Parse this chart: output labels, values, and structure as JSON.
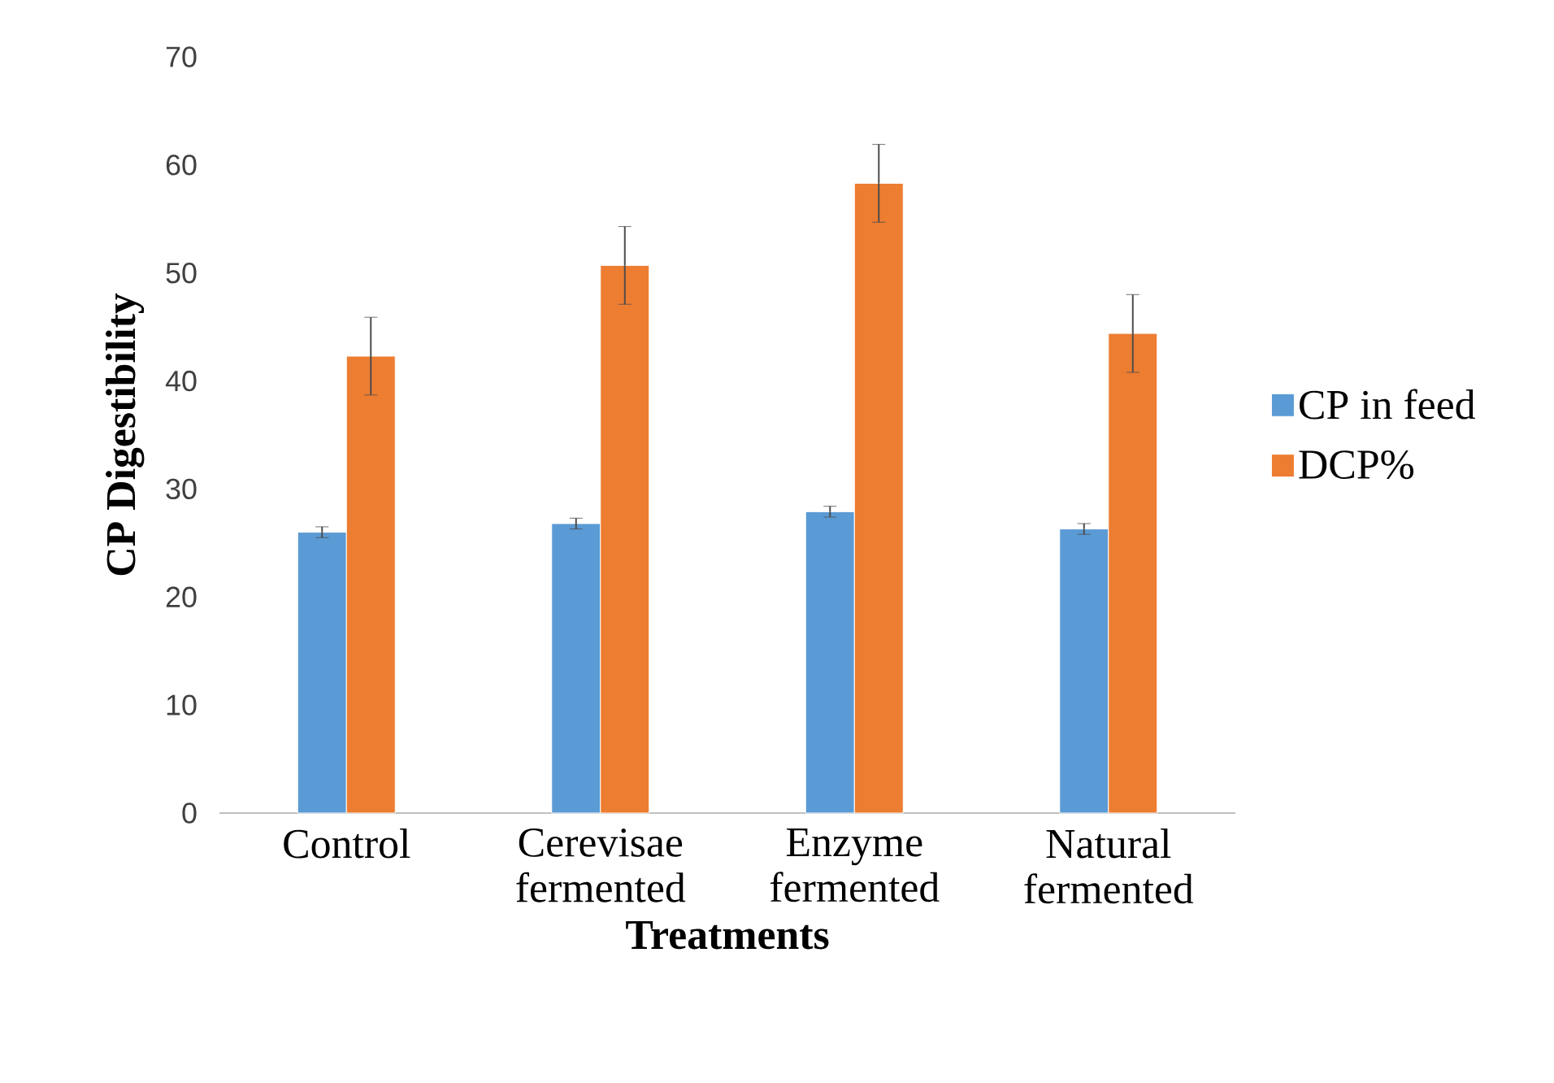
{
  "chart_data": {
    "type": "bar",
    "xlabel": "Treatments",
    "ylabel": "CP Digestibility",
    "categories": [
      "Control",
      "Cerevisae fermented",
      "Enzyme fermented",
      "Natural fermented"
    ],
    "series": [
      {
        "name": "CP  in feed",
        "color": "#5b9bd5",
        "values": [
          26.0,
          26.8,
          27.9,
          26.3
        ],
        "errors": [
          0.5,
          0.5,
          0.5,
          0.5
        ]
      },
      {
        "name": "DCP%",
        "color": "#ed7d31",
        "values": [
          42.3,
          50.7,
          58.3,
          44.4
        ],
        "errors": [
          3.6,
          3.6,
          3.6,
          3.6
        ]
      }
    ],
    "ylim": [
      0,
      70
    ],
    "yticks": [
      0,
      10,
      20,
      30,
      40,
      50,
      60,
      70
    ],
    "grid": false,
    "legend": "right"
  }
}
